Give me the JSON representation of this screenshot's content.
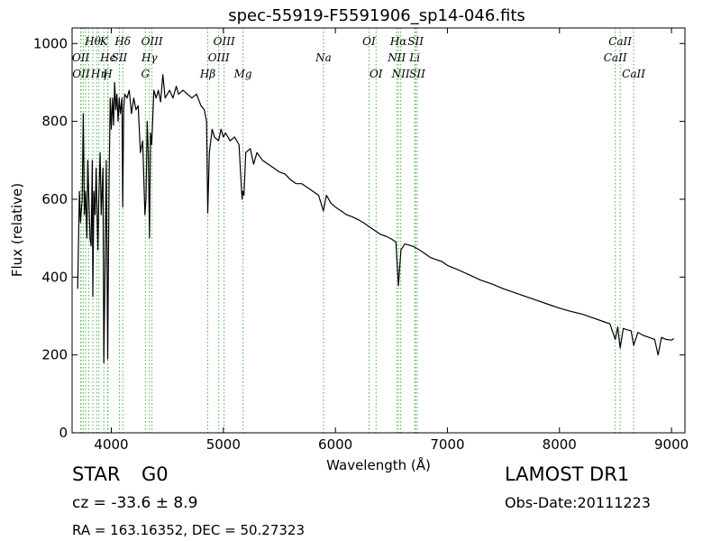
{
  "chart_data": {
    "type": "line",
    "title": "spec-55919-F5591906_sp14-046.fits",
    "xlabel": "Wavelength (Å)",
    "ylabel": "Flux (relative)",
    "xlim": [
      3650,
      9120
    ],
    "ylim": [
      0,
      1040
    ],
    "x_ticks": [
      4000,
      5000,
      6000,
      7000,
      8000,
      9000
    ],
    "y_ticks": [
      0,
      200,
      400,
      600,
      800,
      1000
    ],
    "grid": false,
    "line_color": "#000000",
    "marker_color": "#4daf4a",
    "spectrum": [
      [
        3700,
        370
      ],
      [
        3715,
        620
      ],
      [
        3725,
        540
      ],
      [
        3740,
        600
      ],
      [
        3750,
        820
      ],
      [
        3760,
        560
      ],
      [
        3770,
        620
      ],
      [
        3782,
        500
      ],
      [
        3790,
        700
      ],
      [
        3800,
        600
      ],
      [
        3810,
        500
      ],
      [
        3820,
        480
      ],
      [
        3830,
        700
      ],
      [
        3835,
        350
      ],
      [
        3845,
        620
      ],
      [
        3855,
        560
      ],
      [
        3865,
        680
      ],
      [
        3880,
        470
      ],
      [
        3889,
        610
      ],
      [
        3900,
        720
      ],
      [
        3910,
        560
      ],
      [
        3925,
        680
      ],
      [
        3933,
        180
      ],
      [
        3945,
        450
      ],
      [
        3955,
        700
      ],
      [
        3968,
        190
      ],
      [
        3980,
        640
      ],
      [
        3990,
        860
      ],
      [
        4000,
        780
      ],
      [
        4010,
        860
      ],
      [
        4020,
        790
      ],
      [
        4030,
        900
      ],
      [
        4040,
        830
      ],
      [
        4050,
        870
      ],
      [
        4060,
        800
      ],
      [
        4070,
        860
      ],
      [
        4080,
        820
      ],
      [
        4095,
        860
      ],
      [
        4102,
        580
      ],
      [
        4110,
        830
      ],
      [
        4120,
        870
      ],
      [
        4140,
        860
      ],
      [
        4160,
        880
      ],
      [
        4180,
        820
      ],
      [
        4200,
        860
      ],
      [
        4220,
        830
      ],
      [
        4240,
        840
      ],
      [
        4260,
        720
      ],
      [
        4280,
        750
      ],
      [
        4300,
        560
      ],
      [
        4310,
        600
      ],
      [
        4320,
        800
      ],
      [
        4330,
        720
      ],
      [
        4341,
        500
      ],
      [
        4350,
        770
      ],
      [
        4360,
        740
      ],
      [
        4380,
        880
      ],
      [
        4400,
        860
      ],
      [
        4420,
        880
      ],
      [
        4440,
        850
      ],
      [
        4460,
        920
      ],
      [
        4480,
        860
      ],
      [
        4500,
        870
      ],
      [
        4520,
        880
      ],
      [
        4550,
        860
      ],
      [
        4580,
        890
      ],
      [
        4600,
        870
      ],
      [
        4640,
        880
      ],
      [
        4680,
        870
      ],
      [
        4720,
        860
      ],
      [
        4760,
        870
      ],
      [
        4800,
        840
      ],
      [
        4830,
        830
      ],
      [
        4850,
        800
      ],
      [
        4861,
        565
      ],
      [
        4875,
        720
      ],
      [
        4900,
        780
      ],
      [
        4920,
        760
      ],
      [
        4957,
        750
      ],
      [
        4980,
        780
      ],
      [
        5000,
        760
      ],
      [
        5020,
        770
      ],
      [
        5060,
        750
      ],
      [
        5100,
        760
      ],
      [
        5140,
        740
      ],
      [
        5167,
        600
      ],
      [
        5173,
        620
      ],
      [
        5184,
        610
      ],
      [
        5200,
        720
      ],
      [
        5240,
        730
      ],
      [
        5270,
        690
      ],
      [
        5300,
        720
      ],
      [
        5350,
        700
      ],
      [
        5400,
        690
      ],
      [
        5450,
        680
      ],
      [
        5500,
        670
      ],
      [
        5550,
        665
      ],
      [
        5600,
        650
      ],
      [
        5650,
        640
      ],
      [
        5700,
        640
      ],
      [
        5750,
        630
      ],
      [
        5800,
        620
      ],
      [
        5850,
        610
      ],
      [
        5893,
        570
      ],
      [
        5920,
        610
      ],
      [
        5960,
        590
      ],
      [
        6000,
        580
      ],
      [
        6050,
        570
      ],
      [
        6100,
        560
      ],
      [
        6150,
        555
      ],
      [
        6200,
        548
      ],
      [
        6250,
        540
      ],
      [
        6300,
        530
      ],
      [
        6350,
        520
      ],
      [
        6400,
        510
      ],
      [
        6450,
        505
      ],
      [
        6500,
        498
      ],
      [
        6540,
        490
      ],
      [
        6563,
        378
      ],
      [
        6585,
        470
      ],
      [
        6620,
        485
      ],
      [
        6660,
        482
      ],
      [
        6700,
        478
      ],
      [
        6750,
        470
      ],
      [
        6800,
        460
      ],
      [
        6850,
        450
      ],
      [
        6900,
        445
      ],
      [
        6950,
        440
      ],
      [
        7000,
        430
      ],
      [
        7100,
        418
      ],
      [
        7200,
        405
      ],
      [
        7300,
        392
      ],
      [
        7400,
        382
      ],
      [
        7500,
        370
      ],
      [
        7600,
        360
      ],
      [
        7700,
        350
      ],
      [
        7800,
        340
      ],
      [
        7900,
        330
      ],
      [
        8000,
        320
      ],
      [
        8100,
        312
      ],
      [
        8200,
        305
      ],
      [
        8300,
        295
      ],
      [
        8400,
        285
      ],
      [
        8450,
        280
      ],
      [
        8498,
        240
      ],
      [
        8520,
        272
      ],
      [
        8542,
        218
      ],
      [
        8570,
        268
      ],
      [
        8600,
        265
      ],
      [
        8640,
        262
      ],
      [
        8662,
        225
      ],
      [
        8700,
        258
      ],
      [
        8750,
        250
      ],
      [
        8800,
        245
      ],
      [
        8850,
        240
      ],
      [
        8880,
        200
      ],
      [
        8910,
        245
      ],
      [
        8950,
        240
      ],
      [
        9000,
        238
      ],
      [
        9020,
        242
      ]
    ],
    "lines": [
      {
        "x": 3727,
        "label": "OII",
        "row": 2
      },
      {
        "x": 3730,
        "label": "OII",
        "row": 3
      },
      {
        "x": 3750,
        "label": "",
        "row": 0
      },
      {
        "x": 3771,
        "label": "",
        "row": 0
      },
      {
        "x": 3798,
        "label": "",
        "row": 0
      },
      {
        "x": 3835,
        "label": "Hθ",
        "row": 1
      },
      {
        "x": 3869,
        "label": "",
        "row": 0
      },
      {
        "x": 3889,
        "label": "Hη",
        "row": 3
      },
      {
        "x": 3933,
        "label": "K",
        "row": 1
      },
      {
        "x": 3968,
        "label": "H",
        "row": 3
      },
      {
        "x": 3970,
        "label": "Hϵ",
        "row": 2
      },
      {
        "x": 4072,
        "label": "SII",
        "row": 2
      },
      {
        "x": 4102,
        "label": "Hδ",
        "row": 1
      },
      {
        "x": 4304,
        "label": "G",
        "row": 3
      },
      {
        "x": 4340,
        "label": "Hγ",
        "row": 2
      },
      {
        "x": 4363,
        "label": "OIII",
        "row": 1
      },
      {
        "x": 4861,
        "label": "Hβ",
        "row": 3
      },
      {
        "x": 4959,
        "label": "OIII",
        "row": 2
      },
      {
        "x": 5007,
        "label": "OIII",
        "row": 1
      },
      {
        "x": 5175,
        "label": "Mg",
        "row": 3
      },
      {
        "x": 5894,
        "label": "Na",
        "row": 2
      },
      {
        "x": 6300,
        "label": "OI",
        "row": 1
      },
      {
        "x": 6363,
        "label": "OI",
        "row": 3
      },
      {
        "x": 6548,
        "label": "NII",
        "row": 2
      },
      {
        "x": 6563,
        "label": "Hα",
        "row": 1
      },
      {
        "x": 6583,
        "label": "NII",
        "row": 3
      },
      {
        "x": 6708,
        "label": "Li",
        "row": 2
      },
      {
        "x": 6716,
        "label": "SII",
        "row": 1
      },
      {
        "x": 6731,
        "label": "SII",
        "row": 3
      },
      {
        "x": 8498,
        "label": "CaII",
        "row": 2
      },
      {
        "x": 8542,
        "label": "CaII",
        "row": 1
      },
      {
        "x": 8662,
        "label": "CaII",
        "row": 3
      }
    ]
  },
  "footer": {
    "object_class": "STAR",
    "subclass": "G0",
    "cz": "cz = -33.6 ± 8.9",
    "coords": "RA = 163.16352, DEC = 50.27323",
    "survey": "LAMOST DR1",
    "obs_date": "Obs-Date:20111223"
  }
}
